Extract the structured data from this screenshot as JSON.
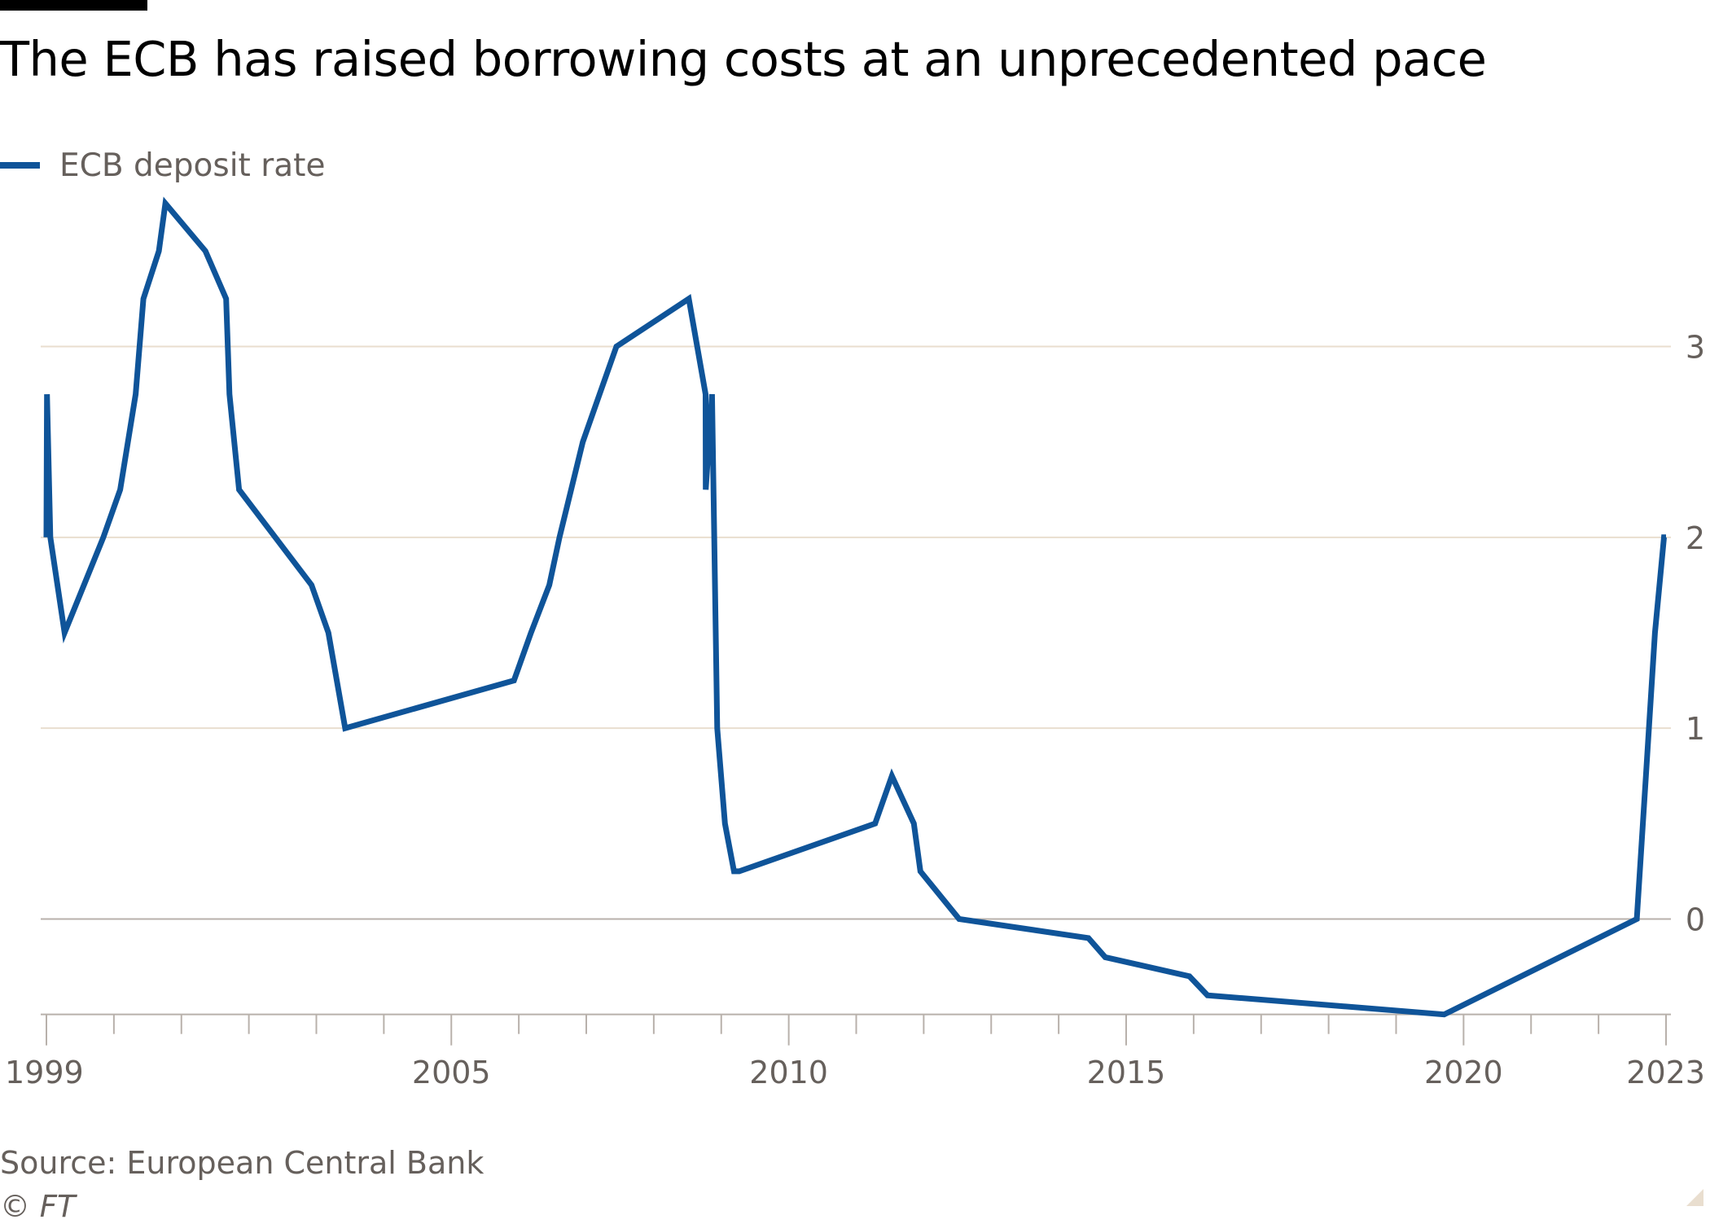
{
  "chart_data": {
    "type": "line",
    "title": "The ECB has raised borrowing costs at an unprecedented pace",
    "xlabel": "",
    "ylabel": "",
    "x_ticks": [
      "1999",
      "2005",
      "2010",
      "2015",
      "2020",
      "2023"
    ],
    "y_ticks": [
      "0",
      "1",
      "2",
      "3"
    ],
    "xlim": [
      "1999-01-01",
      "2023-01-01"
    ],
    "ylim": [
      -0.5,
      3.75
    ],
    "grid": true,
    "legend_position": "top-left",
    "series": [
      {
        "name": "ECB deposit rate",
        "color": "#0f5499",
        "x": [
          "1999-01-01",
          "1999-01-04",
          "1999-01-22",
          "1999-04-09",
          "1999-11-05",
          "2000-02-04",
          "2000-03-17",
          "2000-04-28",
          "2000-06-09",
          "2000-09-01",
          "2000-10-06",
          "2001-05-11",
          "2001-08-31",
          "2001-09-18",
          "2001-11-09",
          "2002-12-06",
          "2003-03-07",
          "2003-06-06",
          "2005-12-06",
          "2006-03-08",
          "2006-06-15",
          "2006-08-09",
          "2006-10-11",
          "2006-12-13",
          "2007-03-14",
          "2007-06-13",
          "2008-07-09",
          "2008-10-08",
          "2008-10-09",
          "2008-11-12",
          "2008-12-10",
          "2009-01-21",
          "2009-03-11",
          "2009-04-08",
          "2011-04-13",
          "2011-07-13",
          "2011-11-09",
          "2011-12-14",
          "2012-07-11",
          "2014-06-11",
          "2014-09-10",
          "2015-12-09",
          "2016-03-16",
          "2019-09-18",
          "2022-07-27",
          "2022-09-14",
          "2022-11-02",
          "2022-12-21",
          "2023-01-01"
        ],
        "y": [
          2.0,
          2.75,
          2.0,
          1.5,
          2.0,
          2.25,
          2.5,
          2.75,
          3.25,
          3.5,
          3.75,
          3.5,
          3.25,
          2.75,
          2.25,
          1.75,
          1.5,
          1.0,
          1.25,
          1.5,
          1.75,
          2.0,
          2.25,
          2.5,
          2.75,
          3.0,
          3.25,
          2.75,
          2.25,
          2.75,
          1.0,
          0.5,
          0.25,
          0.25,
          0.5,
          0.75,
          0.5,
          0.25,
          0.0,
          -0.1,
          -0.2,
          -0.3,
          -0.4,
          -0.5,
          0.0,
          0.75,
          1.5,
          2.0,
          2.0
        ]
      }
    ]
  },
  "legend": {
    "label": "ECB deposit rate"
  },
  "source": "Source: European Central Bank",
  "copyright": "© FT",
  "colors": {
    "line": "#0f5499",
    "grid": "#e9decf",
    "zero_line": "#b8b1ab",
    "axis": "#b8b1ab",
    "text": "#66605c",
    "corner": "#e9decf"
  }
}
